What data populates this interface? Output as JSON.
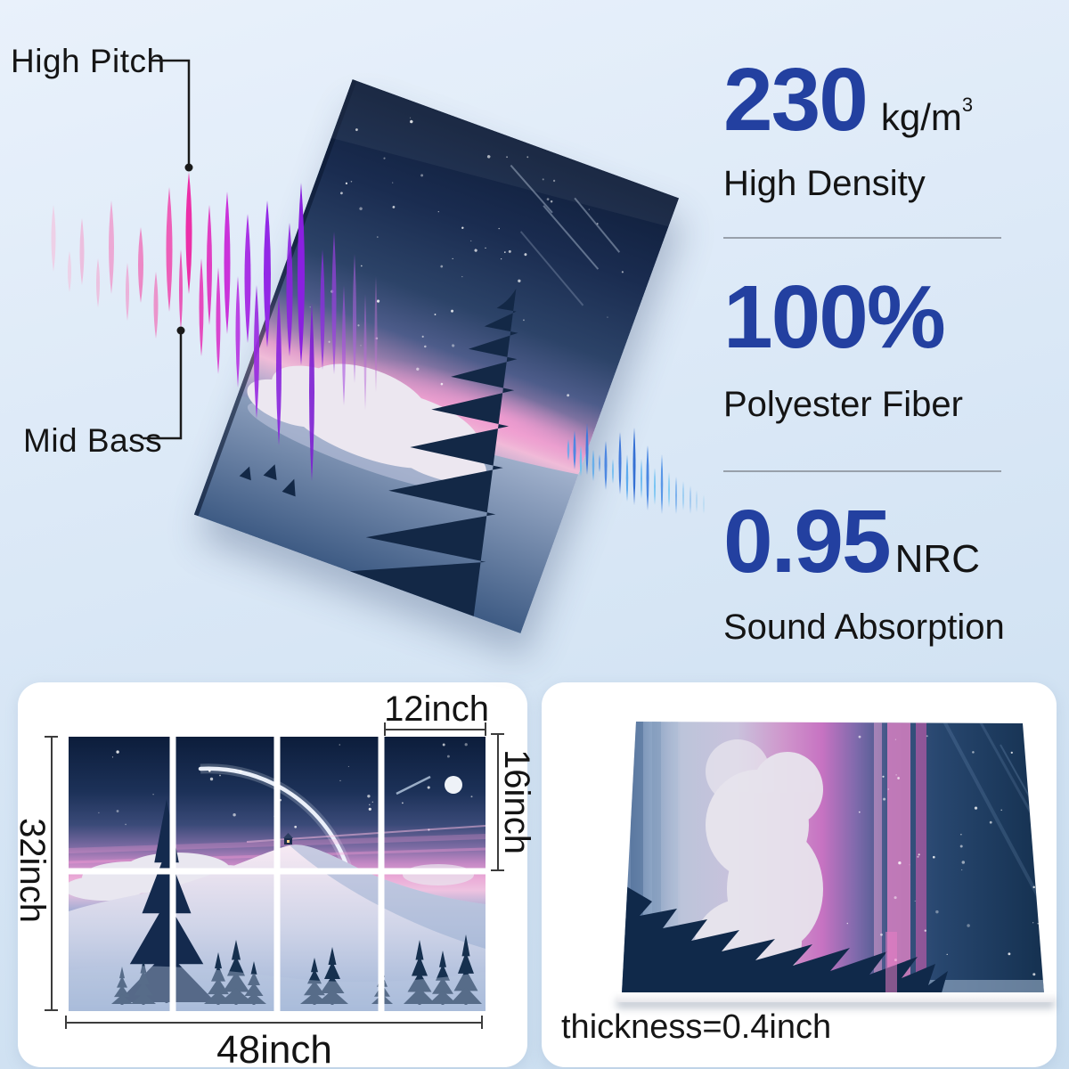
{
  "labels": {
    "high_pitch": "High Pitch",
    "mid_bass": "Mid Bass"
  },
  "stats": {
    "density": {
      "value": "230",
      "unit": "kg/m",
      "unit_sup": "3",
      "label": "High Density"
    },
    "fiber": {
      "value": "100%",
      "label": "Polyester Fiber"
    },
    "nrc": {
      "value": "0.95",
      "unit": "NRC",
      "label": "Sound Absorption"
    }
  },
  "dimensions": {
    "tile_width": "12inch",
    "tile_height": "16inch",
    "total_height": "32inch",
    "total_width": "48inch",
    "thickness": "thickness=0.4inch"
  },
  "colors": {
    "accent_blue": "#2340a0",
    "background_top": "#e9f1fb",
    "background_bottom": "#c9ddef",
    "wave_pink": "#ec2fa8",
    "wave_purple": "#8a20e0",
    "wave_blue": "#3a7ce0",
    "text_dark": "#141414"
  }
}
